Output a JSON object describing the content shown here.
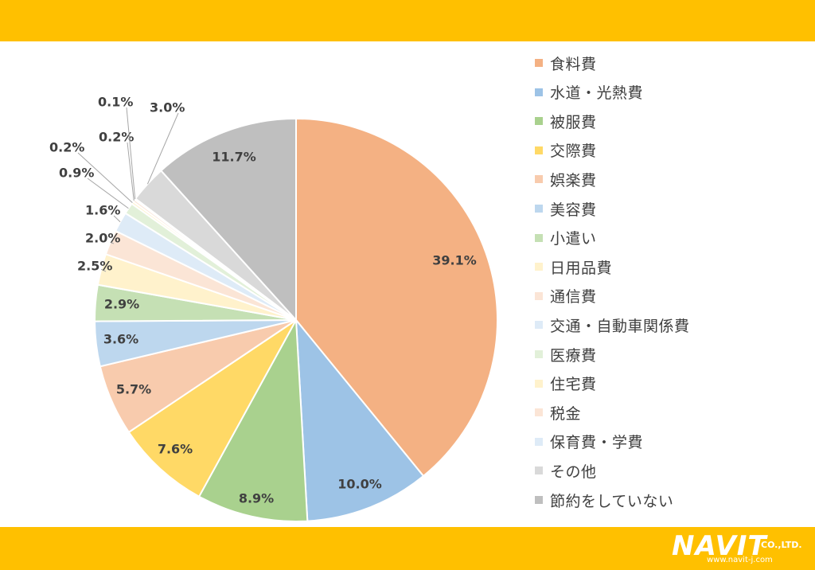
{
  "chart_data": {
    "type": "pie",
    "title": "",
    "categories": [
      "食料費",
      "水道・光熱費",
      "被服費",
      "交際費",
      "娯楽費",
      "美容費",
      "小遣い",
      "日用品費",
      "通信費",
      "交通・自動車関係費",
      "医療費",
      "住宅費",
      "税金",
      "保育費・学費",
      "その他",
      "節約をしていない"
    ],
    "values": [
      39.1,
      10.0,
      8.9,
      7.6,
      5.7,
      3.6,
      2.9,
      2.5,
      2.0,
      1.6,
      0.9,
      0.2,
      0.2,
      0.1,
      3.0,
      11.7
    ],
    "data_labels": [
      "39.1%",
      "10.0%",
      "8.9%",
      "7.6%",
      "5.7%",
      "3.6%",
      "2.9%",
      "2.5%",
      "2.0%",
      "1.6%",
      "0.9%",
      "0.2%",
      "0.2%",
      "0.1%",
      "3.0%",
      "11.7%"
    ],
    "colors": [
      "#F4B183",
      "#9DC3E6",
      "#A9D18E",
      "#FFD966",
      "#F8CBAD",
      "#BDD7EE",
      "#C5E0B4",
      "#FFF2CC",
      "#FBE5D6",
      "#DEEBF7",
      "#E2F0D9",
      "#FFF2CC",
      "#FBE5D6",
      "#DEEBF7",
      "#D9D9D9",
      "#BFBFBF"
    ],
    "start_angle": "12 o'clock",
    "direction": "clockwise",
    "legend": "right"
  },
  "logo": {
    "name": "NAVIT",
    "suffix": "CO.,LTD.",
    "url": "www.navit-j.com"
  }
}
